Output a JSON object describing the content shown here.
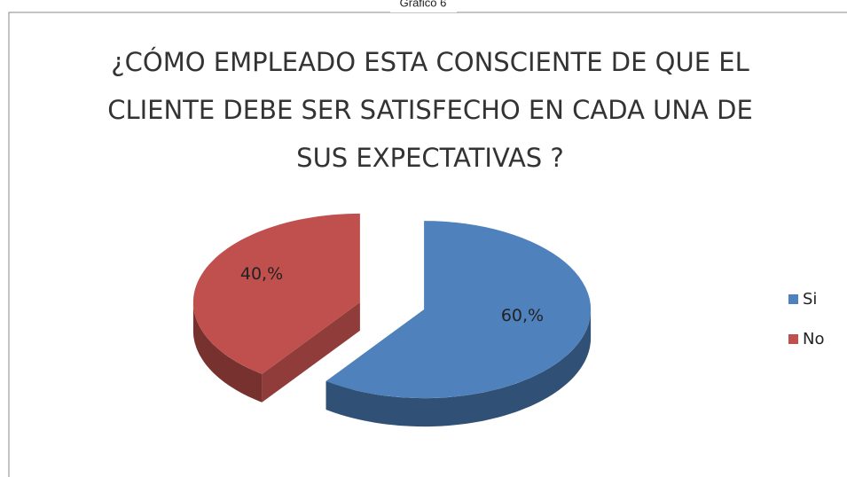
{
  "chart_data": {
    "type": "pie",
    "caption": "Grafico 6",
    "title": [
      "¿CÓMO EMPLEADO ESTA CONSCIENTE DE QUE EL",
      "CLIENTE DEBE SER SATISFECHO EN CADA UNA DE",
      "SUS EXPECTATIVAS ?"
    ],
    "categories": [
      "Si",
      "No"
    ],
    "values": [
      60,
      40
    ],
    "value_labels": [
      "60,%",
      "40,%"
    ],
    "colors": [
      "#4f81bd",
      "#c0504d"
    ],
    "legend": "right"
  }
}
